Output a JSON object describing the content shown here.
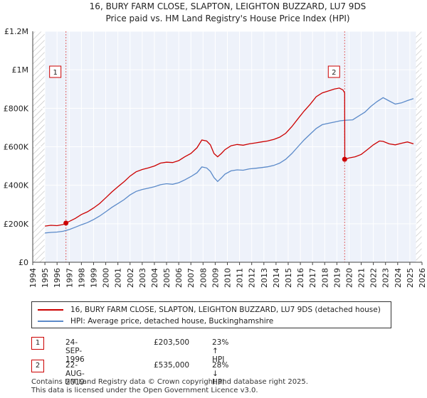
{
  "chart_data": {
    "type": "line",
    "title": "16, BURY FARM CLOSE, SLAPTON, LEIGHTON BUZZARD, LU7 9DS",
    "subtitle": "Price paid vs. HM Land Registry's House Price Index (HPI)",
    "xlabel": "",
    "ylabel": "",
    "xlim": [
      1994,
      2026
    ],
    "ylim": [
      0,
      1200000
    ],
    "y_ticks": [
      0,
      200000,
      400000,
      600000,
      800000,
      1000000,
      1200000
    ],
    "y_tick_labels": [
      "£0",
      "£200K",
      "£400K",
      "£600K",
      "£800K",
      "£1M",
      "£1.2M"
    ],
    "x_ticks": [
      "1994",
      "1995",
      "1996",
      "1997",
      "1998",
      "1999",
      "2000",
      "2001",
      "2002",
      "2003",
      "2004",
      "2005",
      "2006",
      "2007",
      "2008",
      "2009",
      "2010",
      "2011",
      "2012",
      "2013",
      "2014",
      "2015",
      "2016",
      "2017",
      "2018",
      "2019",
      "2020",
      "2021",
      "2022",
      "2023",
      "2024",
      "2025",
      "2026"
    ],
    "data_start": 1995.0,
    "data_end": 2025.5,
    "series": [
      {
        "name": "16, BURY FARM CLOSE, SLAPTON, LEIGHTON BUZZARD, LU7 9DS (detached house)",
        "color": "#cc0000",
        "points": [
          [
            1995.0,
            188000
          ],
          [
            1995.5,
            192000
          ],
          [
            1996.0,
            190000
          ],
          [
            1996.5,
            196000
          ],
          [
            1996.73,
            203500
          ],
          [
            1997.0,
            212000
          ],
          [
            1997.5,
            228000
          ],
          [
            1998.0,
            248000
          ],
          [
            1998.5,
            262000
          ],
          [
            1999.0,
            282000
          ],
          [
            1999.5,
            305000
          ],
          [
            2000.0,
            335000
          ],
          [
            2000.5,
            365000
          ],
          [
            2001.0,
            392000
          ],
          [
            2001.5,
            418000
          ],
          [
            2002.0,
            448000
          ],
          [
            2002.5,
            470000
          ],
          [
            2003.0,
            482000
          ],
          [
            2003.5,
            490000
          ],
          [
            2004.0,
            500000
          ],
          [
            2004.5,
            515000
          ],
          [
            2005.0,
            520000
          ],
          [
            2005.5,
            518000
          ],
          [
            2006.0,
            528000
          ],
          [
            2006.5,
            548000
          ],
          [
            2007.0,
            565000
          ],
          [
            2007.5,
            595000
          ],
          [
            2007.9,
            635000
          ],
          [
            2008.3,
            630000
          ],
          [
            2008.6,
            610000
          ],
          [
            2008.9,
            565000
          ],
          [
            2009.2,
            548000
          ],
          [
            2009.5,
            565000
          ],
          [
            2009.8,
            585000
          ],
          [
            2010.3,
            605000
          ],
          [
            2010.8,
            612000
          ],
          [
            2011.3,
            608000
          ],
          [
            2011.8,
            615000
          ],
          [
            2012.3,
            620000
          ],
          [
            2012.8,
            625000
          ],
          [
            2013.3,
            630000
          ],
          [
            2013.8,
            638000
          ],
          [
            2014.3,
            650000
          ],
          [
            2014.8,
            670000
          ],
          [
            2015.3,
            705000
          ],
          [
            2015.8,
            745000
          ],
          [
            2016.3,
            785000
          ],
          [
            2016.8,
            820000
          ],
          [
            2017.3,
            860000
          ],
          [
            2017.8,
            880000
          ],
          [
            2018.3,
            890000
          ],
          [
            2018.8,
            900000
          ],
          [
            2019.2,
            905000
          ],
          [
            2019.5,
            895000
          ],
          [
            2019.64,
            880000
          ],
          [
            2019.65,
            535000
          ],
          [
            2020.0,
            542000
          ],
          [
            2020.5,
            548000
          ],
          [
            2021.0,
            560000
          ],
          [
            2021.5,
            585000
          ],
          [
            2022.0,
            610000
          ],
          [
            2022.5,
            630000
          ],
          [
            2022.8,
            628000
          ],
          [
            2023.3,
            615000
          ],
          [
            2023.8,
            610000
          ],
          [
            2024.3,
            618000
          ],
          [
            2024.8,
            625000
          ],
          [
            2025.3,
            615000
          ]
        ]
      },
      {
        "name": "HPI: Average price, detached house, Buckinghamshire",
        "color": "#5b8ac9",
        "points": [
          [
            1995.0,
            152000
          ],
          [
            1995.5,
            155000
          ],
          [
            1996.0,
            157000
          ],
          [
            1996.5,
            161000
          ],
          [
            1997.0,
            170000
          ],
          [
            1997.5,
            182000
          ],
          [
            1998.0,
            195000
          ],
          [
            1998.5,
            206000
          ],
          [
            1999.0,
            222000
          ],
          [
            1999.5,
            240000
          ],
          [
            2000.0,
            262000
          ],
          [
            2000.5,
            285000
          ],
          [
            2001.0,
            305000
          ],
          [
            2001.5,
            325000
          ],
          [
            2002.0,
            350000
          ],
          [
            2002.5,
            368000
          ],
          [
            2003.0,
            378000
          ],
          [
            2003.5,
            385000
          ],
          [
            2004.0,
            392000
          ],
          [
            2004.5,
            403000
          ],
          [
            2005.0,
            408000
          ],
          [
            2005.5,
            405000
          ],
          [
            2006.0,
            413000
          ],
          [
            2006.5,
            428000
          ],
          [
            2007.0,
            445000
          ],
          [
            2007.5,
            465000
          ],
          [
            2007.9,
            495000
          ],
          [
            2008.3,
            490000
          ],
          [
            2008.6,
            472000
          ],
          [
            2008.9,
            440000
          ],
          [
            2009.2,
            420000
          ],
          [
            2009.5,
            438000
          ],
          [
            2009.8,
            458000
          ],
          [
            2010.3,
            475000
          ],
          [
            2010.8,
            480000
          ],
          [
            2011.3,
            478000
          ],
          [
            2011.8,
            485000
          ],
          [
            2012.3,
            488000
          ],
          [
            2012.8,
            492000
          ],
          [
            2013.3,
            496000
          ],
          [
            2013.8,
            503000
          ],
          [
            2014.3,
            515000
          ],
          [
            2014.8,
            535000
          ],
          [
            2015.3,
            565000
          ],
          [
            2015.8,
            600000
          ],
          [
            2016.3,
            635000
          ],
          [
            2016.8,
            665000
          ],
          [
            2017.3,
            695000
          ],
          [
            2017.8,
            715000
          ],
          [
            2018.3,
            722000
          ],
          [
            2018.8,
            728000
          ],
          [
            2019.3,
            735000
          ],
          [
            2019.8,
            738000
          ],
          [
            2020.3,
            740000
          ],
          [
            2020.8,
            760000
          ],
          [
            2021.3,
            780000
          ],
          [
            2021.8,
            810000
          ],
          [
            2022.3,
            835000
          ],
          [
            2022.8,
            855000
          ],
          [
            2023.3,
            838000
          ],
          [
            2023.8,
            822000
          ],
          [
            2024.3,
            828000
          ],
          [
            2024.8,
            840000
          ],
          [
            2025.3,
            850000
          ]
        ]
      }
    ],
    "sales": [
      {
        "label": "1",
        "x": 1996.73,
        "value": 203500
      },
      {
        "label": "2",
        "x": 2019.64,
        "value": 535000
      }
    ],
    "vlines": [
      1996.73,
      2019.64
    ],
    "marker_label_value": 960000
  },
  "legend": {
    "property_label": "16, BURY FARM CLOSE, SLAPTON, LEIGHTON BUZZARD, LU7 9DS (detached house)",
    "hpi_label": "HPI: Average price, detached house, Buckinghamshire"
  },
  "sales_table": [
    {
      "num": "1",
      "date": "24-SEP-1996",
      "price": "£203,500",
      "hpi": "23% ↑ HPI"
    },
    {
      "num": "2",
      "date": "22-AUG-2019",
      "price": "£535,000",
      "hpi": "28% ↓ HPI"
    }
  ],
  "footer": {
    "line1": "Contains HM Land Registry data © Crown copyright and database right 2025.",
    "line2": "This data is licensed under the Open Government Licence v3.0."
  },
  "colors": {
    "property": "#cc0000",
    "hpi": "#5b8ac9",
    "plot_bg": "#eef2fa",
    "grid": "#ffffff",
    "hatch": "#bfbfbf"
  }
}
